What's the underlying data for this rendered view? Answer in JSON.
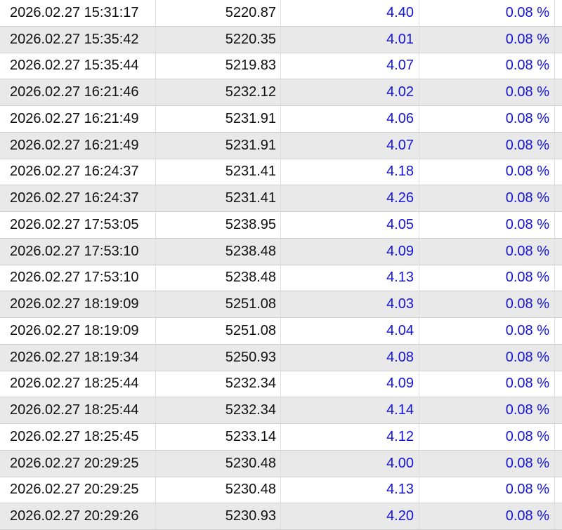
{
  "table": {
    "value_color": "#1414dc",
    "rows": [
      {
        "time": "2026.02.27 15:31:17",
        "price": "5220.87",
        "value": "4.40",
        "percent": "0.08 %"
      },
      {
        "time": "2026.02.27 15:35:42",
        "price": "5220.35",
        "value": "4.01",
        "percent": "0.08 %"
      },
      {
        "time": "2026.02.27 15:35:44",
        "price": "5219.83",
        "value": "4.07",
        "percent": "0.08 %"
      },
      {
        "time": "2026.02.27 16:21:46",
        "price": "5232.12",
        "value": "4.02",
        "percent": "0.08 %"
      },
      {
        "time": "2026.02.27 16:21:49",
        "price": "5231.91",
        "value": "4.06",
        "percent": "0.08 %"
      },
      {
        "time": "2026.02.27 16:21:49",
        "price": "5231.91",
        "value": "4.07",
        "percent": "0.08 %"
      },
      {
        "time": "2026.02.27 16:24:37",
        "price": "5231.41",
        "value": "4.18",
        "percent": "0.08 %"
      },
      {
        "time": "2026.02.27 16:24:37",
        "price": "5231.41",
        "value": "4.26",
        "percent": "0.08 %"
      },
      {
        "time": "2026.02.27 17:53:05",
        "price": "5238.95",
        "value": "4.05",
        "percent": "0.08 %"
      },
      {
        "time": "2026.02.27 17:53:10",
        "price": "5238.48",
        "value": "4.09",
        "percent": "0.08 %"
      },
      {
        "time": "2026.02.27 17:53:10",
        "price": "5238.48",
        "value": "4.13",
        "percent": "0.08 %"
      },
      {
        "time": "2026.02.27 18:19:09",
        "price": "5251.08",
        "value": "4.03",
        "percent": "0.08 %"
      },
      {
        "time": "2026.02.27 18:19:09",
        "price": "5251.08",
        "value": "4.04",
        "percent": "0.08 %"
      },
      {
        "time": "2026.02.27 18:19:34",
        "price": "5250.93",
        "value": "4.08",
        "percent": "0.08 %"
      },
      {
        "time": "2026.02.27 18:25:44",
        "price": "5232.34",
        "value": "4.09",
        "percent": "0.08 %"
      },
      {
        "time": "2026.02.27 18:25:44",
        "price": "5232.34",
        "value": "4.14",
        "percent": "0.08 %"
      },
      {
        "time": "2026.02.27 18:25:45",
        "price": "5233.14",
        "value": "4.12",
        "percent": "0.08 %"
      },
      {
        "time": "2026.02.27 20:29:25",
        "price": "5230.48",
        "value": "4.00",
        "percent": "0.08 %"
      },
      {
        "time": "2026.02.27 20:29:25",
        "price": "5230.48",
        "value": "4.13",
        "percent": "0.08 %"
      },
      {
        "time": "2026.02.27 20:29:26",
        "price": "5230.93",
        "value": "4.20",
        "percent": "0.08 %"
      }
    ]
  }
}
